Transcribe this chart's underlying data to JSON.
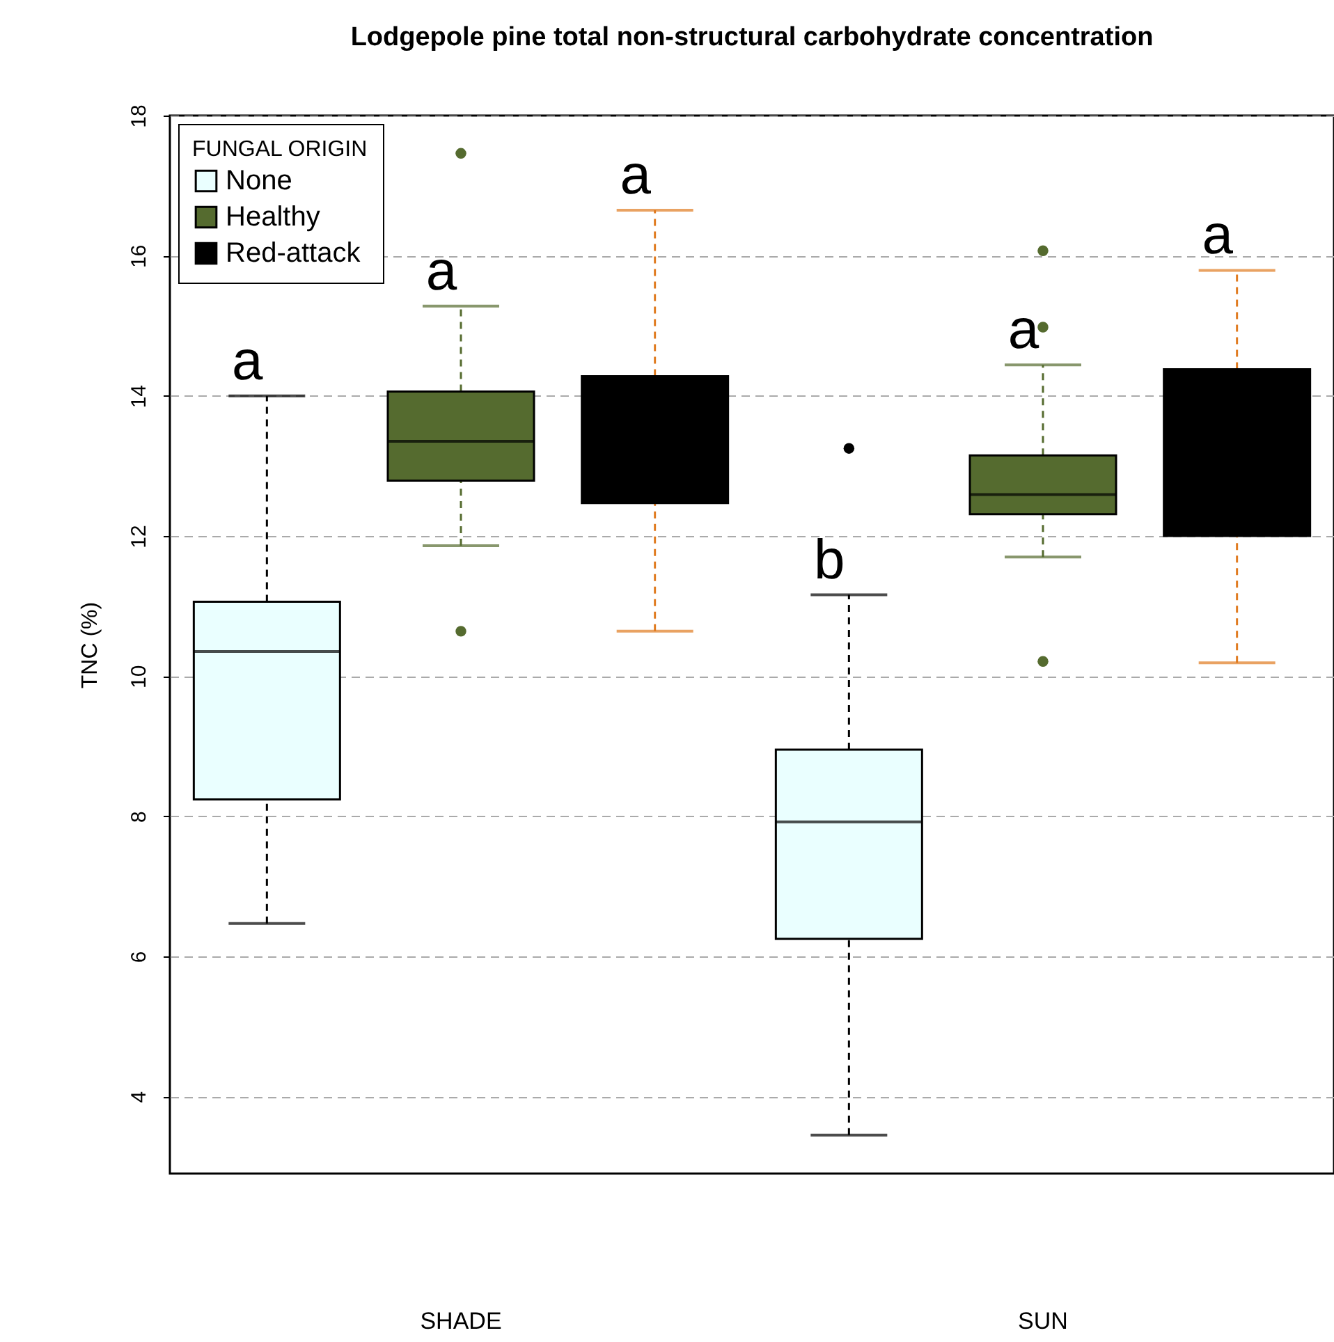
{
  "chart_data": {
    "type": "box",
    "title": "Lodgepole pine total non-structural carbohydrate concentration",
    "ylabel": "TNC (%)",
    "legend_title": "FUNGAL ORIGIN",
    "categories": [
      "SHADE",
      "SUN"
    ],
    "series": [
      {
        "name": "None",
        "color": "#eaffff",
        "boxes": [
          {
            "low": 6.47,
            "q1": 8.24,
            "median": 10.35,
            "q3": 11.06,
            "high": 14.0
          },
          {
            "low": 3.45,
            "q1": 6.25,
            "median": 7.92,
            "q3": 8.95,
            "high": 11.16,
            "outliers": [
              13.25
            ]
          }
        ]
      },
      {
        "name": "Healthy",
        "color": "#556b2f",
        "boxes": [
          {
            "low": 11.86,
            "q1": 12.79,
            "median": 13.35,
            "q3": 14.06,
            "high": 15.28,
            "outliers": [
              17.46,
              10.64
            ]
          },
          {
            "low": 11.7,
            "q1": 12.31,
            "median": 12.59,
            "q3": 13.15,
            "high": 14.44,
            "outliers": [
              16.07,
              14.98,
              10.21
            ]
          }
        ]
      },
      {
        "name": "Red-attack",
        "color": "#000000",
        "boxes": [
          {
            "low": 10.64,
            "q1": 12.47,
            "median": 13.29,
            "q3": 14.28,
            "high": 16.65
          },
          {
            "low": 10.19,
            "q1": 12.0,
            "median": 13.29,
            "q3": 14.38,
            "high": 15.79
          }
        ]
      }
    ],
    "annotations": [
      "a",
      "a",
      "a",
      "b",
      "a",
      "a"
    ],
    "ylim": [
      2.9,
      18.0
    ],
    "yticks": [
      4,
      6,
      8,
      10,
      12,
      14,
      16,
      18
    ],
    "grid": "y",
    "legend": "top left"
  }
}
